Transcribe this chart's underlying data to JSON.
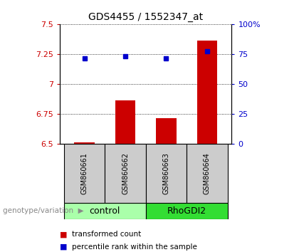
{
  "title": "GDS4455 / 1552347_at",
  "samples": [
    "GSM860661",
    "GSM860662",
    "GSM860663",
    "GSM860664"
  ],
  "red_values": [
    6.51,
    6.86,
    6.71,
    7.36
  ],
  "blue_values": [
    71,
    73,
    71,
    77
  ],
  "ylim_left": [
    6.5,
    7.5
  ],
  "ylim_right": [
    0,
    100
  ],
  "yticks_left": [
    6.5,
    6.75,
    7.0,
    7.25,
    7.5
  ],
  "ytick_labels_left": [
    "6.5",
    "6.75",
    "7",
    "7.25",
    "7.5"
  ],
  "yticks_right": [
    0,
    25,
    50,
    75,
    100
  ],
  "ytick_labels_right": [
    "0",
    "25",
    "50",
    "75",
    "100%"
  ],
  "groups": [
    {
      "label": "control",
      "samples": [
        0,
        1
      ],
      "color": "#aaffaa"
    },
    {
      "label": "RhoGDI2",
      "samples": [
        2,
        3
      ],
      "color": "#33dd33"
    }
  ],
  "genotype_label": "genotype/variation",
  "legend_red": "transformed count",
  "legend_blue": "percentile rank within the sample",
  "bar_color": "#cc0000",
  "dot_color": "#0000cc",
  "bar_width": 0.5,
  "sample_bg_color": "#cccccc",
  "plot_bg_color": "#ffffff"
}
